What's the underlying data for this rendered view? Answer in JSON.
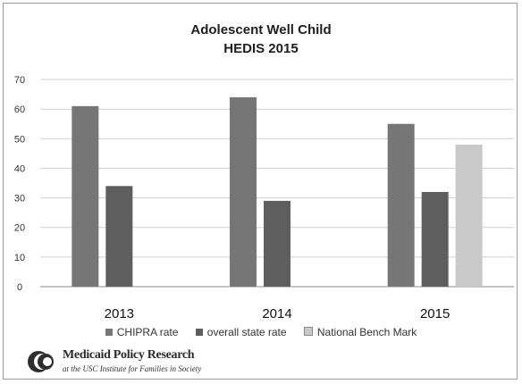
{
  "chart_data": {
    "type": "bar",
    "title": "Adolescent Well Child",
    "subtitle": "HEDIS 2015",
    "categories": [
      "2013",
      "2014",
      "2015"
    ],
    "series": [
      {
        "name": "CHIPRA rate",
        "values": [
          61,
          64,
          55
        ],
        "color": "#767676"
      },
      {
        "name": "overall state rate",
        "values": [
          34,
          29,
          32
        ],
        "color": "#5e5e5e"
      },
      {
        "name": "National Bench Mark",
        "values": [
          null,
          null,
          48
        ],
        "color": "#c9c9c9"
      }
    ],
    "ylim": [
      0,
      70
    ],
    "yticks": [
      "0",
      "10",
      "20",
      "30",
      "40",
      "50",
      "60",
      "70"
    ],
    "xlabel": "",
    "ylabel": "",
    "grid": true,
    "legend_position": "bottom"
  },
  "logo": {
    "name": "Medicaid Policy Research",
    "subtitle": "at the USC Institute for Families in Society"
  }
}
